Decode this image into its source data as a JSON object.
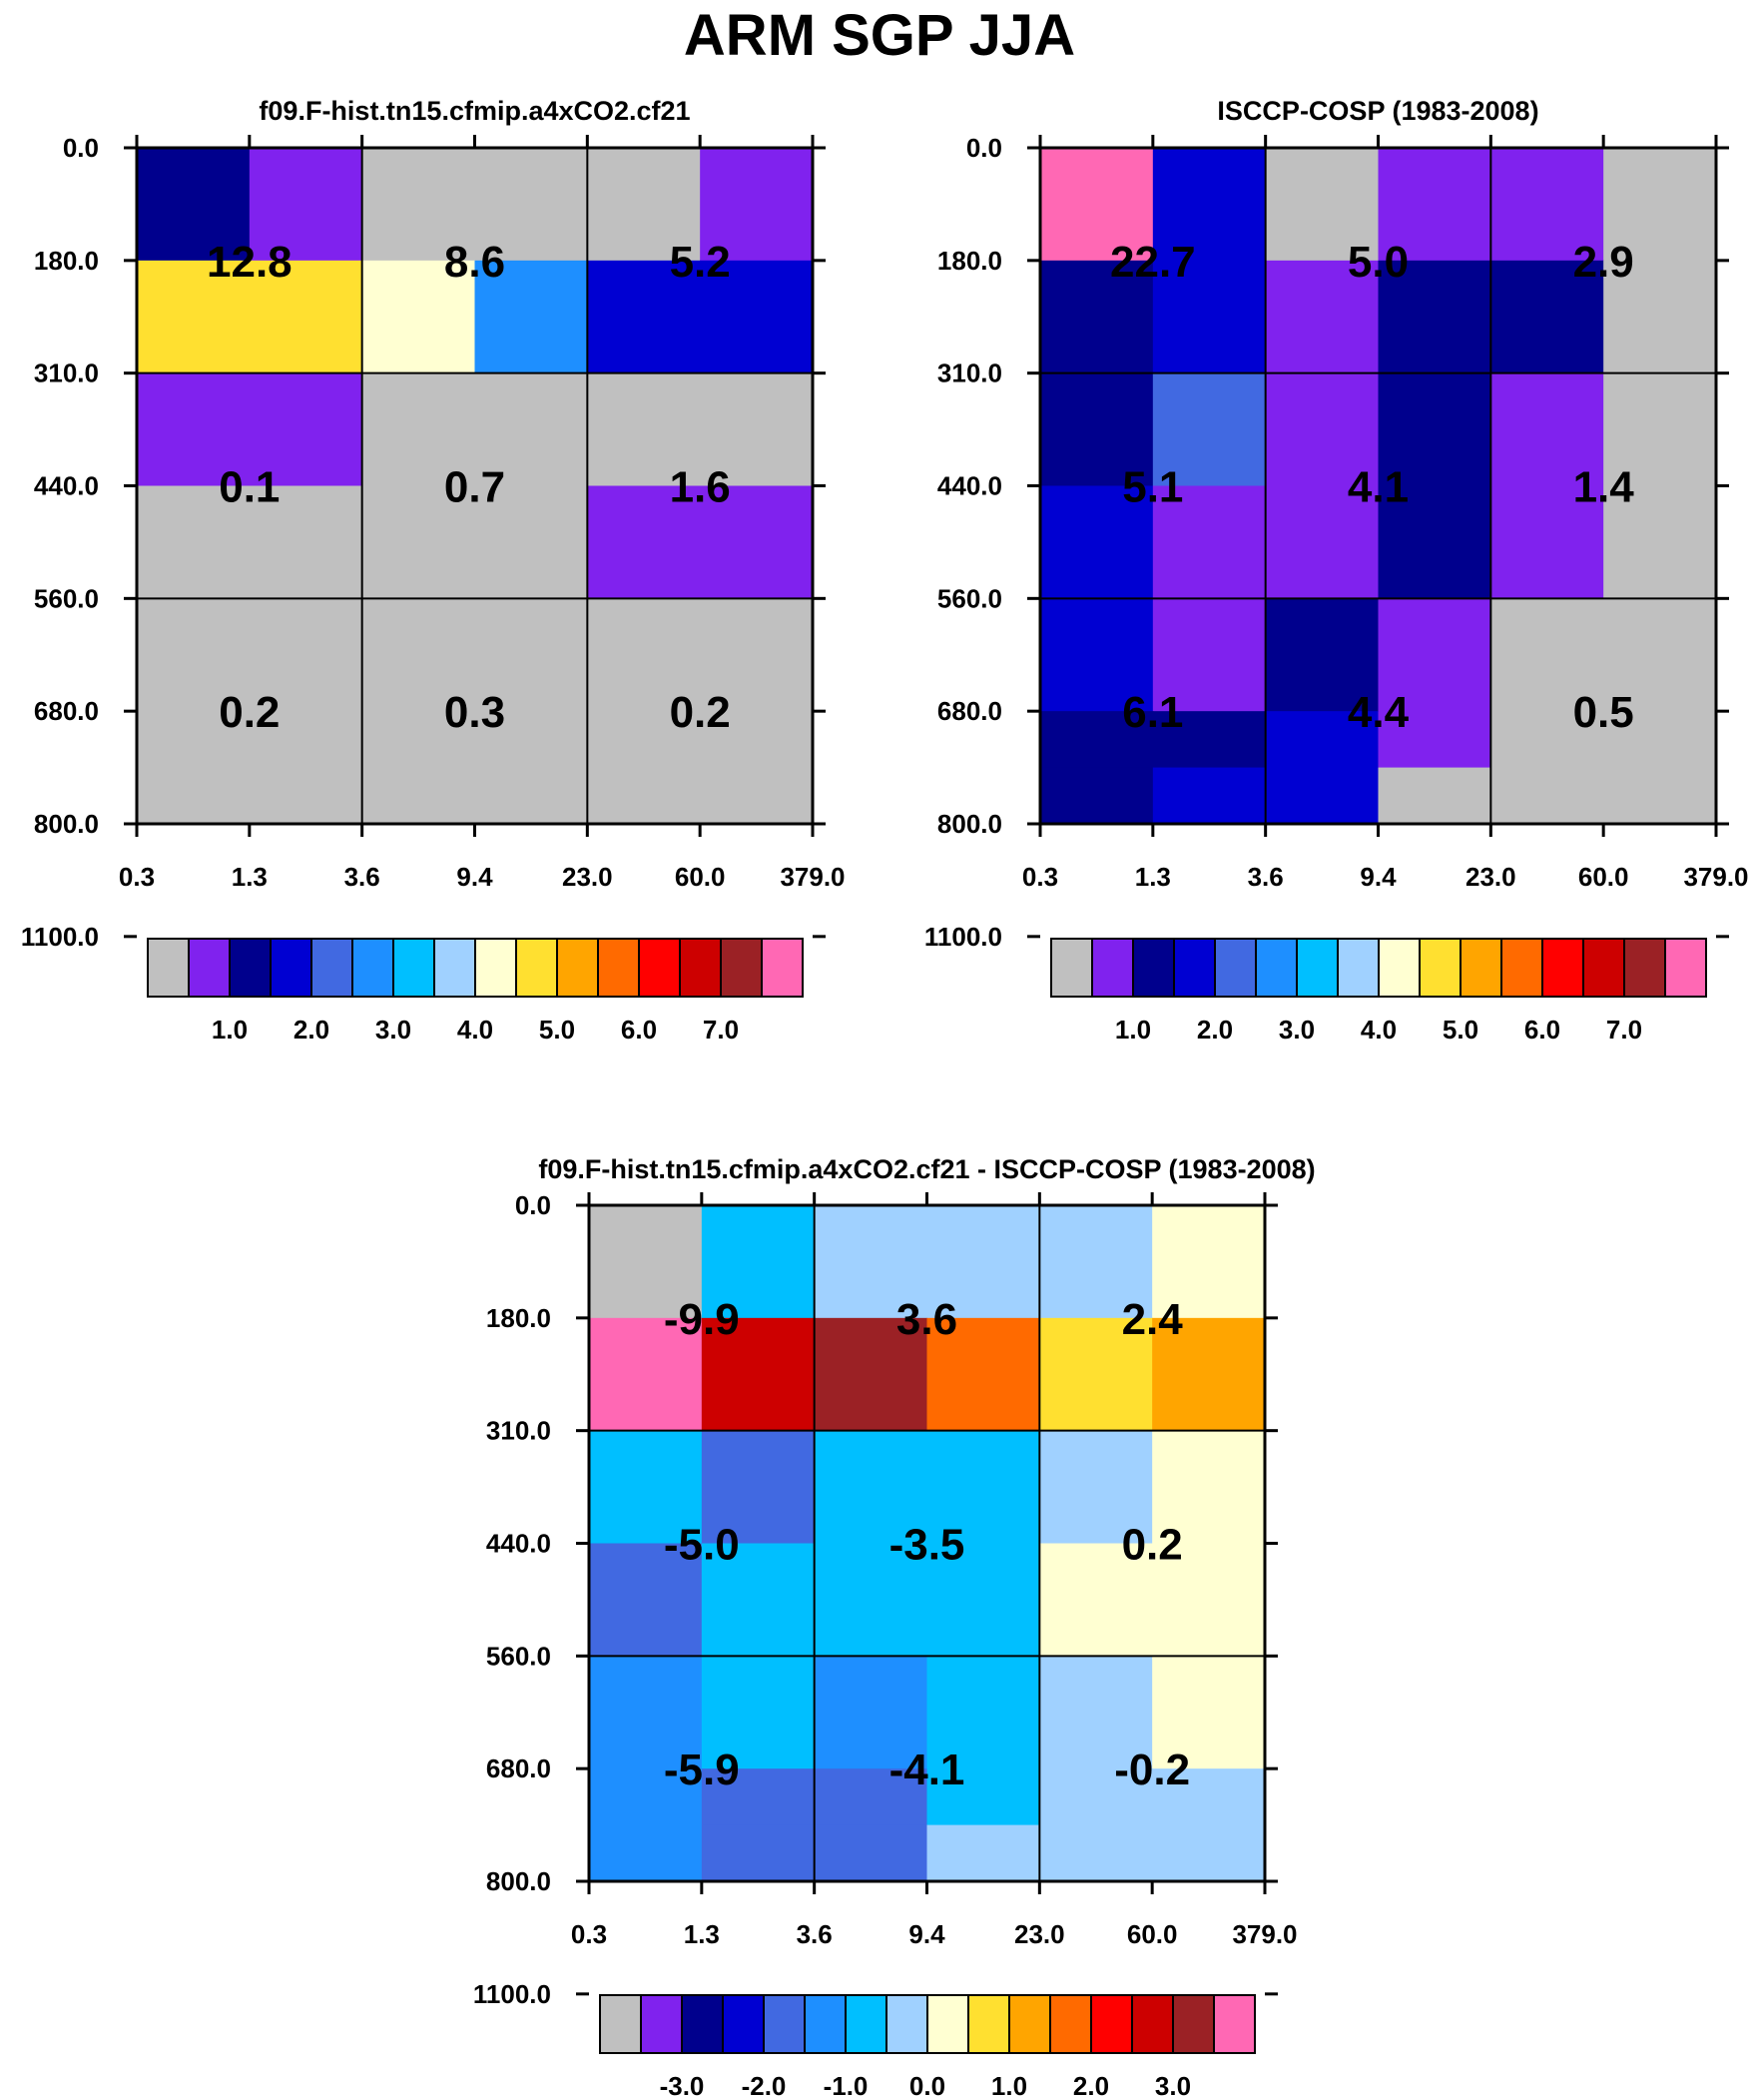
{
  "page": {
    "title": "ARM SGP JJA"
  },
  "palettes": {
    "abs": [
      "#c0c0c0",
      "#8022ee",
      "#00008d",
      "#0000d2",
      "#4169e1",
      "#1e8fff",
      "#00bfff",
      "#a0d1ff",
      "#ffffd2",
      "#ffe030",
      "#ffa500",
      "#ff6a00",
      "#ff0000",
      "#cd0000",
      "#9b2125",
      "#ff68b4"
    ],
    "diff": [
      "#c0c0c0",
      "#8022ee",
      "#00008d",
      "#0000d2",
      "#4169e1",
      "#1e8fff",
      "#00bfff",
      "#a0d1ff",
      "#ffffd2",
      "#ffe030",
      "#ffa500",
      "#ff6a00",
      "#ff0000",
      "#cd0000",
      "#9b2125",
      "#ff68b4"
    ]
  },
  "chart_data": [
    {
      "type": "heatmap",
      "title": "f09.F-hist.tn15.cfmip.a4xCO2.cf21",
      "x_ticks": [
        "0.3",
        "1.3",
        "3.6",
        "9.4",
        "23.0",
        "60.0",
        "379.0"
      ],
      "y_ticks": [
        "0.0",
        "180.0",
        "310.0",
        "440.0",
        "560.0",
        "680.0",
        "800.0",
        "1100.0"
      ],
      "cells": [
        [
          2,
          1,
          0,
          0,
          0,
          1
        ],
        [
          9,
          9,
          8,
          5,
          3,
          3
        ],
        [
          1,
          1,
          0,
          0,
          0,
          0
        ],
        [
          0,
          0,
          0,
          0,
          1,
          1
        ],
        [
          0,
          0,
          0,
          0,
          0,
          0
        ],
        [
          0,
          0,
          0,
          0,
          0,
          0
        ]
      ],
      "block_labels": [
        [
          "12.8",
          "8.6",
          "5.2"
        ],
        [
          "0.1",
          "0.7",
          "1.6"
        ],
        [
          "0.2",
          "0.3",
          "0.2"
        ]
      ],
      "colorbar": {
        "palette": "abs",
        "labels": [
          "1.0",
          "2.0",
          "3.0",
          "4.0",
          "5.0",
          "6.0",
          "7.0"
        ]
      }
    },
    {
      "type": "heatmap",
      "title": "ISCCP-COSP (1983-2008)",
      "x_ticks": [
        "0.3",
        "1.3",
        "3.6",
        "9.4",
        "23.0",
        "60.0",
        "379.0"
      ],
      "y_ticks": [
        "0.0",
        "180.0",
        "310.0",
        "440.0",
        "560.0",
        "680.0",
        "800.0",
        "1100.0"
      ],
      "cells": [
        [
          15,
          3,
          0,
          1,
          1,
          0
        ],
        [
          2,
          3,
          1,
          2,
          2,
          0
        ],
        [
          2,
          4,
          1,
          2,
          1,
          0
        ],
        [
          3,
          1,
          1,
          2,
          1,
          0
        ],
        [
          3,
          1,
          2,
          1,
          0,
          0
        ],
        [
          2,
          2,
          3,
          1,
          0,
          0
        ],
        [
          2,
          3,
          3,
          0,
          0,
          0
        ]
      ],
      "row_edges": [
        0,
        1,
        2,
        3,
        4,
        5,
        5.5,
        6
      ],
      "block_labels": [
        [
          "22.7",
          "5.0",
          "2.9"
        ],
        [
          "5.1",
          "4.1",
          "1.4"
        ],
        [
          "6.1",
          "4.4",
          "0.5"
        ]
      ],
      "colorbar": {
        "palette": "abs",
        "labels": [
          "1.0",
          "2.0",
          "3.0",
          "4.0",
          "5.0",
          "6.0",
          "7.0"
        ]
      }
    },
    {
      "type": "heatmap",
      "title": "f09.F-hist.tn15.cfmip.a4xCO2.cf21 - ISCCP-COSP (1983-2008)",
      "x_ticks": [
        "0.3",
        "1.3",
        "3.6",
        "9.4",
        "23.0",
        "60.0",
        "379.0"
      ],
      "y_ticks": [
        "0.0",
        "180.0",
        "310.0",
        "440.0",
        "560.0",
        "680.0",
        "800.0",
        "1100.0"
      ],
      "cells": [
        [
          0,
          6,
          7,
          7,
          7,
          8
        ],
        [
          15,
          13,
          14,
          11,
          9,
          10
        ],
        [
          6,
          4,
          6,
          6,
          7,
          8
        ],
        [
          4,
          6,
          6,
          6,
          8,
          8
        ],
        [
          5,
          6,
          5,
          6,
          7,
          8
        ],
        [
          5,
          4,
          4,
          6,
          7,
          7
        ],
        [
          5,
          4,
          4,
          7,
          7,
          7
        ]
      ],
      "row_edges": [
        0,
        1,
        2,
        3,
        4,
        5,
        5.5,
        6
      ],
      "block_labels": [
        [
          "-9.9",
          "3.6",
          "2.4"
        ],
        [
          "-5.0",
          "-3.5",
          "0.2"
        ],
        [
          "-5.9",
          "-4.1",
          "-0.2"
        ]
      ],
      "colorbar": {
        "palette": "diff",
        "labels": [
          "-3.0",
          "-2.0",
          "-1.0",
          "0.0",
          "1.0",
          "2.0",
          "3.0"
        ]
      }
    }
  ]
}
